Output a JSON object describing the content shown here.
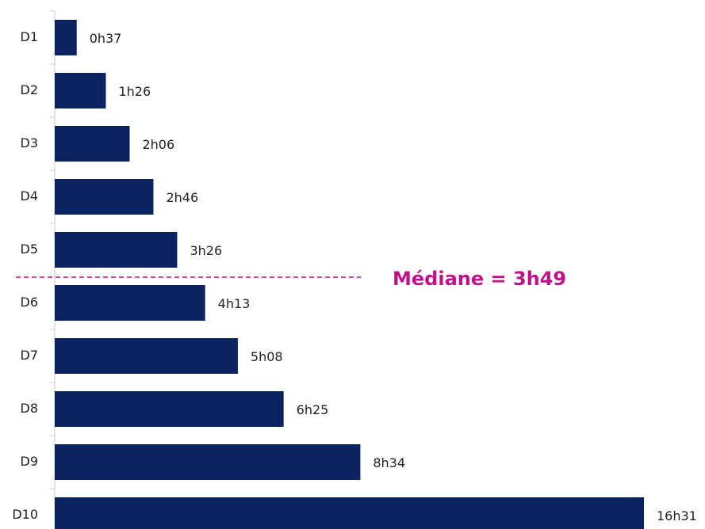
{
  "chart_data": {
    "type": "bar",
    "orientation": "horizontal",
    "categories": [
      "D1",
      "D2",
      "D3",
      "D4",
      "D5",
      "D6",
      "D7",
      "D8",
      "D9",
      "D10"
    ],
    "values": [
      37,
      86,
      126,
      166,
      206,
      253,
      308,
      385,
      514,
      991
    ],
    "value_labels": [
      "0h37",
      "1h26",
      "2h06",
      "2h46",
      "3h26",
      "4h13",
      "5h08",
      "6h25",
      "8h34",
      "16h31"
    ],
    "color": "#0b2360",
    "annotation": "Médiane = 3h49",
    "annotation_color": "#c0118a"
  }
}
